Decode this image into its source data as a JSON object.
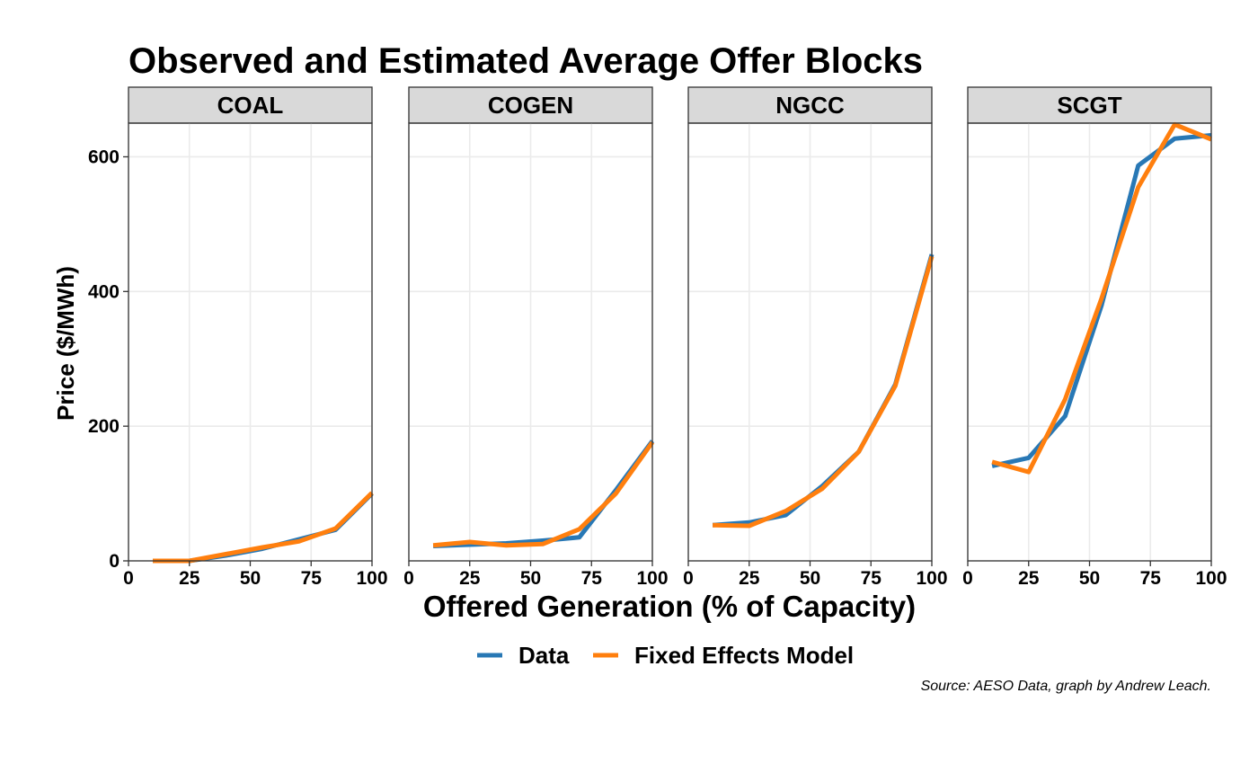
{
  "chart_data": {
    "type": "line",
    "title": "Observed and Estimated Average Offer Blocks",
    "xlabel": "Offered Generation (% of Capacity)",
    "ylabel": "Price ($/MWh)",
    "xlim": [
      0,
      100
    ],
    "ylim": [
      0,
      650
    ],
    "x_ticks": [
      0,
      25,
      50,
      75,
      100
    ],
    "y_ticks": [
      0,
      200,
      400,
      600
    ],
    "grid": true,
    "legend_position": "bottom",
    "caption": "Source: AESO Data, graph by Andrew Leach.",
    "series_styles": [
      {
        "name": "Data",
        "color": "#2878b5"
      },
      {
        "name": "Fixed Effects Model",
        "color": "#ff7f0e"
      }
    ],
    "panels": [
      {
        "label": "COAL",
        "series": [
          {
            "name": "Data",
            "x": [
              10,
              25,
              40,
              55,
              70,
              85,
              100
            ],
            "y": [
              0,
              0,
              8,
              18,
              32,
              46,
              100
            ]
          },
          {
            "name": "Fixed Effects Model",
            "x": [
              10,
              25,
              40,
              55,
              70,
              85,
              100
            ],
            "y": [
              0,
              0,
              10,
              20,
              29,
              48,
              101
            ]
          }
        ]
      },
      {
        "label": "COGEN",
        "series": [
          {
            "name": "Data",
            "x": [
              10,
              25,
              40,
              55,
              70,
              85,
              100
            ],
            "y": [
              22,
              24,
              26,
              30,
              35,
              105,
              178
            ]
          },
          {
            "name": "Fixed Effects Model",
            "x": [
              10,
              25,
              40,
              55,
              70,
              85,
              100
            ],
            "y": [
              23,
              28,
              23,
              25,
              47,
              100,
              176
            ]
          }
        ]
      },
      {
        "label": "NGCC",
        "series": [
          {
            "name": "Data",
            "x": [
              10,
              25,
              40,
              55,
              70,
              85,
              100
            ],
            "y": [
              53,
              57,
              68,
              111,
              162,
              262,
              455
            ]
          },
          {
            "name": "Fixed Effects Model",
            "x": [
              10,
              25,
              40,
              55,
              70,
              85,
              100
            ],
            "y": [
              53,
              52,
              74,
              107,
              162,
              260,
              452
            ]
          }
        ]
      },
      {
        "label": "SCGT",
        "series": [
          {
            "name": "Data",
            "x": [
              10,
              25,
              40,
              55,
              70,
              85,
              100
            ],
            "y": [
              141,
              153,
              215,
              380,
              587,
              627,
              632
            ]
          },
          {
            "name": "Fixed Effects Model",
            "x": [
              10,
              25,
              40,
              55,
              70,
              85,
              100
            ],
            "y": [
              147,
              132,
              240,
              390,
              555,
              648,
              626
            ]
          }
        ]
      }
    ]
  }
}
